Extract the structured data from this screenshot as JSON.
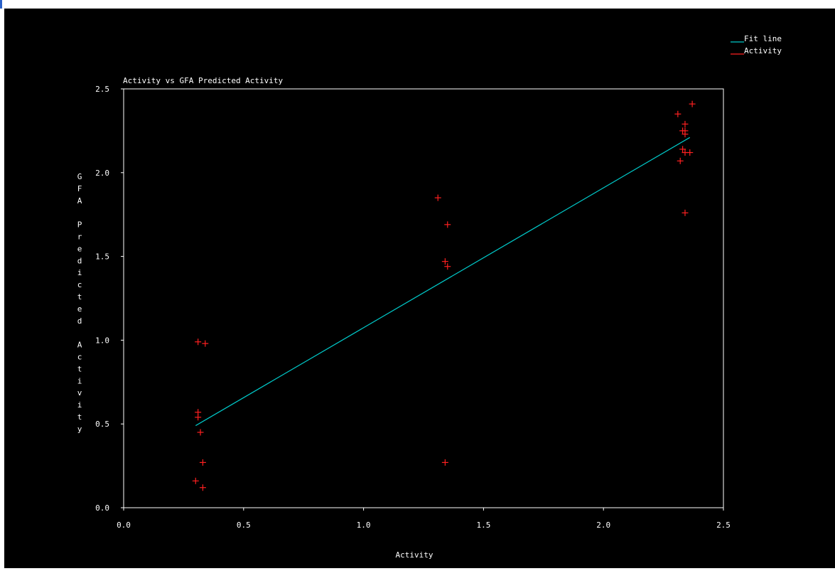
{
  "chart_data": {
    "type": "scatter",
    "title": "Activity vs GFA Predicted Activity",
    "xlabel": "Activity",
    "ylabel": "GFA Predicted Activity",
    "xlim": [
      0,
      2.5
    ],
    "ylim": [
      0,
      2.5
    ],
    "xticks": [
      "0.0",
      "0.5",
      "1.0",
      "1.5",
      "2.0",
      "2.5"
    ],
    "yticks": [
      "0.0",
      "0.5",
      "1.0",
      "1.5",
      "2.0",
      "2.5"
    ],
    "grid": false,
    "legend_position": "top-right",
    "series": [
      {
        "name": "Fit line",
        "kind": "line",
        "color": "#00c8c8",
        "points": [
          [
            0.3,
            0.49
          ],
          [
            2.36,
            2.21
          ]
        ]
      },
      {
        "name": "Activity",
        "kind": "scatter",
        "marker": "plus",
        "color": "#ff2020",
        "points": [
          [
            0.31,
            0.99
          ],
          [
            0.34,
            0.98
          ],
          [
            0.31,
            0.57
          ],
          [
            0.31,
            0.54
          ],
          [
            0.32,
            0.45
          ],
          [
            0.33,
            0.27
          ],
          [
            0.3,
            0.16
          ],
          [
            0.33,
            0.12
          ],
          [
            1.31,
            1.85
          ],
          [
            1.35,
            1.69
          ],
          [
            1.34,
            1.47
          ],
          [
            1.35,
            1.44
          ],
          [
            1.34,
            0.27
          ],
          [
            2.31,
            2.35
          ],
          [
            2.37,
            2.41
          ],
          [
            2.34,
            2.29
          ],
          [
            2.34,
            2.25
          ],
          [
            2.33,
            2.25
          ],
          [
            2.34,
            2.23
          ],
          [
            2.33,
            2.14
          ],
          [
            2.34,
            2.12
          ],
          [
            2.36,
            2.12
          ],
          [
            2.32,
            2.07
          ],
          [
            2.34,
            1.76
          ]
        ]
      }
    ]
  }
}
